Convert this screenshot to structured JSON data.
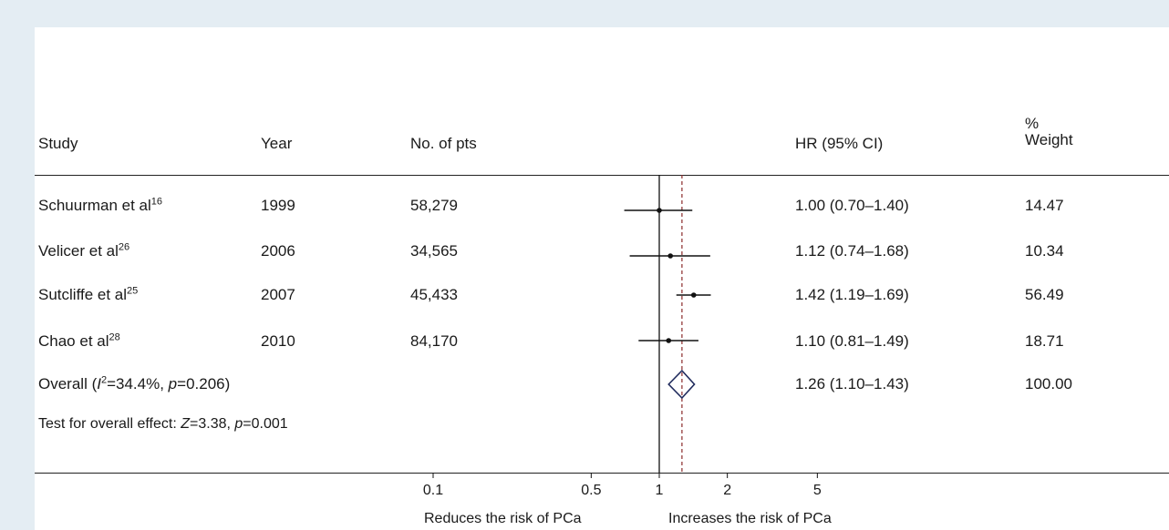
{
  "headers": {
    "study": "Study",
    "year": "Year",
    "pts": "No. of pts",
    "hr": "HR (95% CI)",
    "weight_pct": "%",
    "weight": "Weight"
  },
  "rows": [
    {
      "name": "Schuurman et al",
      "ref": "16",
      "year": "1999",
      "pts": "58,279",
      "hr_text": "1.00 (0.70–1.40)",
      "weight": "14.47"
    },
    {
      "name": "Velicer et al",
      "ref": "26",
      "year": "2006",
      "pts": "34,565",
      "hr_text": "1.12 (0.74–1.68)",
      "weight": "10.34"
    },
    {
      "name": "Sutcliffe et al",
      "ref": "25",
      "year": "2007",
      "pts": "45,433",
      "hr_text": "1.42 (1.19–1.69)",
      "weight": "56.49"
    },
    {
      "name": "Chao et al",
      "ref": "28",
      "year": "2010",
      "pts": "84,170",
      "hr_text": "1.10 (0.81–1.49)",
      "weight": "18.71"
    }
  ],
  "overall": {
    "label_a": "Overall (",
    "i2_sym": "I",
    "i2_sup": "2",
    "label_b": "=34.4%, ",
    "p_sym": "p",
    "label_c": "=0.206)",
    "hr_text": "1.26 (1.10–1.43)",
    "weight": "100.00"
  },
  "test": {
    "label_a": "Test for overall effect: ",
    "z_sym": "Z",
    "label_b": "=3.38, ",
    "p_sym": "p",
    "label_c": "=0.001"
  },
  "chart_data": {
    "type": "forest",
    "x_scale": "log",
    "x_ticks": [
      0.1,
      0.5,
      1,
      2,
      5
    ],
    "x_tick_labels": [
      "0.1",
      "0.5",
      "1",
      "2",
      "5"
    ],
    "null_line": 1,
    "studies": [
      {
        "hr": 1.0,
        "lo": 0.7,
        "hi": 1.4
      },
      {
        "hr": 1.12,
        "lo": 0.74,
        "hi": 1.68
      },
      {
        "hr": 1.42,
        "lo": 1.19,
        "hi": 1.69
      },
      {
        "hr": 1.1,
        "lo": 0.81,
        "hi": 1.49
      }
    ],
    "overall": {
      "hr": 1.26,
      "lo": 1.1,
      "hi": 1.43
    },
    "xlabel_left": "Reduces the risk of PCa",
    "xlabel_right": "Increases the risk of PCa",
    "colors": {
      "axis": "#111111",
      "overall_dash": "#8b2a2a",
      "diamond": "#1f2a5c"
    }
  }
}
